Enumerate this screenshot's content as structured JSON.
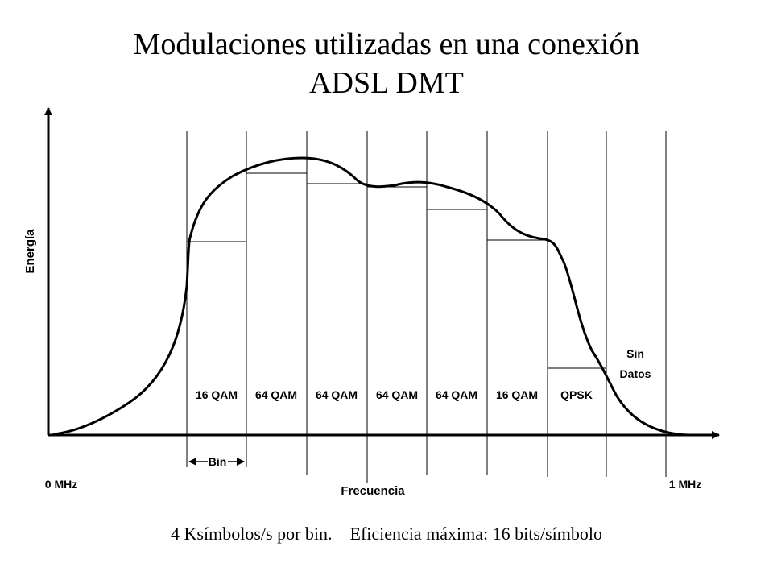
{
  "title": {
    "line1": "Modulaciones utilizadas en una conexión",
    "line2": "ADSL DMT"
  },
  "axes": {
    "y_label": "Energía",
    "x_label": "Frecuencia",
    "x_start": "0 MHz",
    "x_end": "1 MHz"
  },
  "bins": [
    {
      "modulation": "16 QAM"
    },
    {
      "modulation": "64 QAM"
    },
    {
      "modulation": "64 QAM"
    },
    {
      "modulation": "64 QAM"
    },
    {
      "modulation": "64 QAM"
    },
    {
      "modulation": "16 QAM"
    },
    {
      "modulation": "QPSK"
    }
  ],
  "no_data": {
    "line1": "Sin",
    "line2": "Datos"
  },
  "bin_width_label": "Bin",
  "footer": {
    "left": "4 Ksímbolos/s por bin.",
    "right": "Eficiencia máxima: 16 bits/símbolo"
  }
}
